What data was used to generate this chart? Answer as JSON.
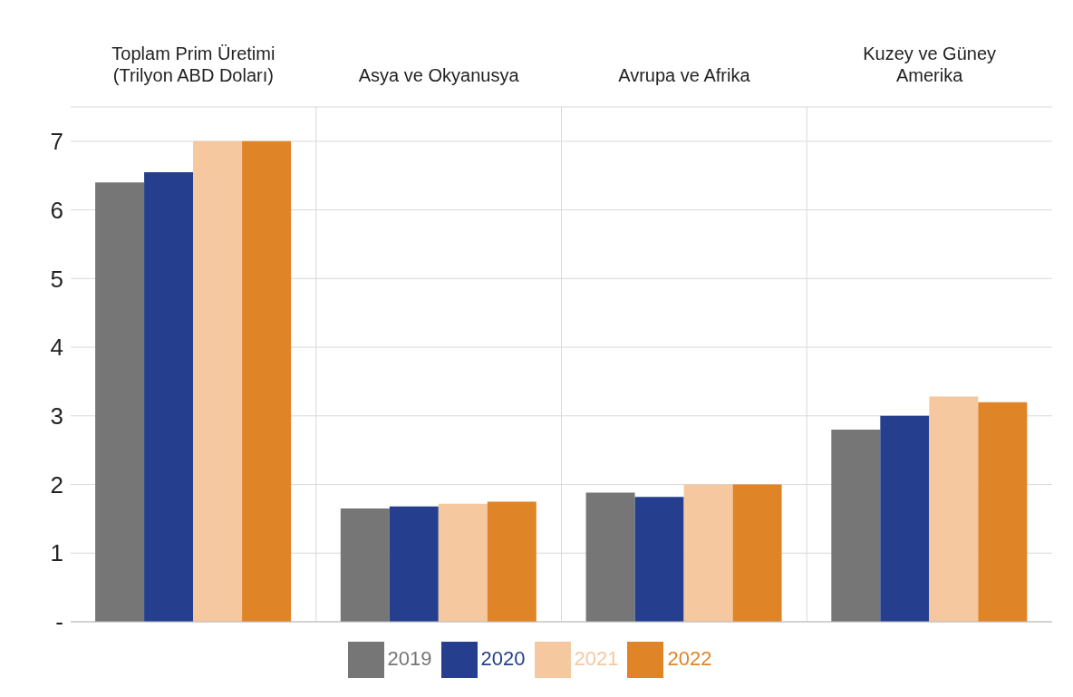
{
  "chart_data": {
    "type": "bar",
    "categories": [
      "Toplam Prim Üretimi (Trilyon ABD Doları)",
      "Asya ve Okyanusya",
      "Avrupa ve Afrika",
      "Kuzey ve Güney Amerika"
    ],
    "series": [
      {
        "name": "2019",
        "color": "#767676",
        "values": [
          6.4,
          1.65,
          1.88,
          2.8
        ]
      },
      {
        "name": "2020",
        "color": "#253f8e",
        "values": [
          6.55,
          1.68,
          1.82,
          3.0
        ]
      },
      {
        "name": "2021",
        "color": "#f5c8a0",
        "values": [
          7.0,
          1.72,
          2.0,
          3.28
        ]
      },
      {
        "name": "2022",
        "color": "#e08428",
        "values": [
          7.0,
          1.75,
          2.0,
          3.2
        ]
      }
    ],
    "ylim": [
      0,
      7.5
    ],
    "yticks": [
      {
        "value": 0,
        "label": "-"
      },
      1,
      2,
      3,
      4,
      5,
      6,
      7
    ],
    "grid": true,
    "legend": "bottom"
  }
}
